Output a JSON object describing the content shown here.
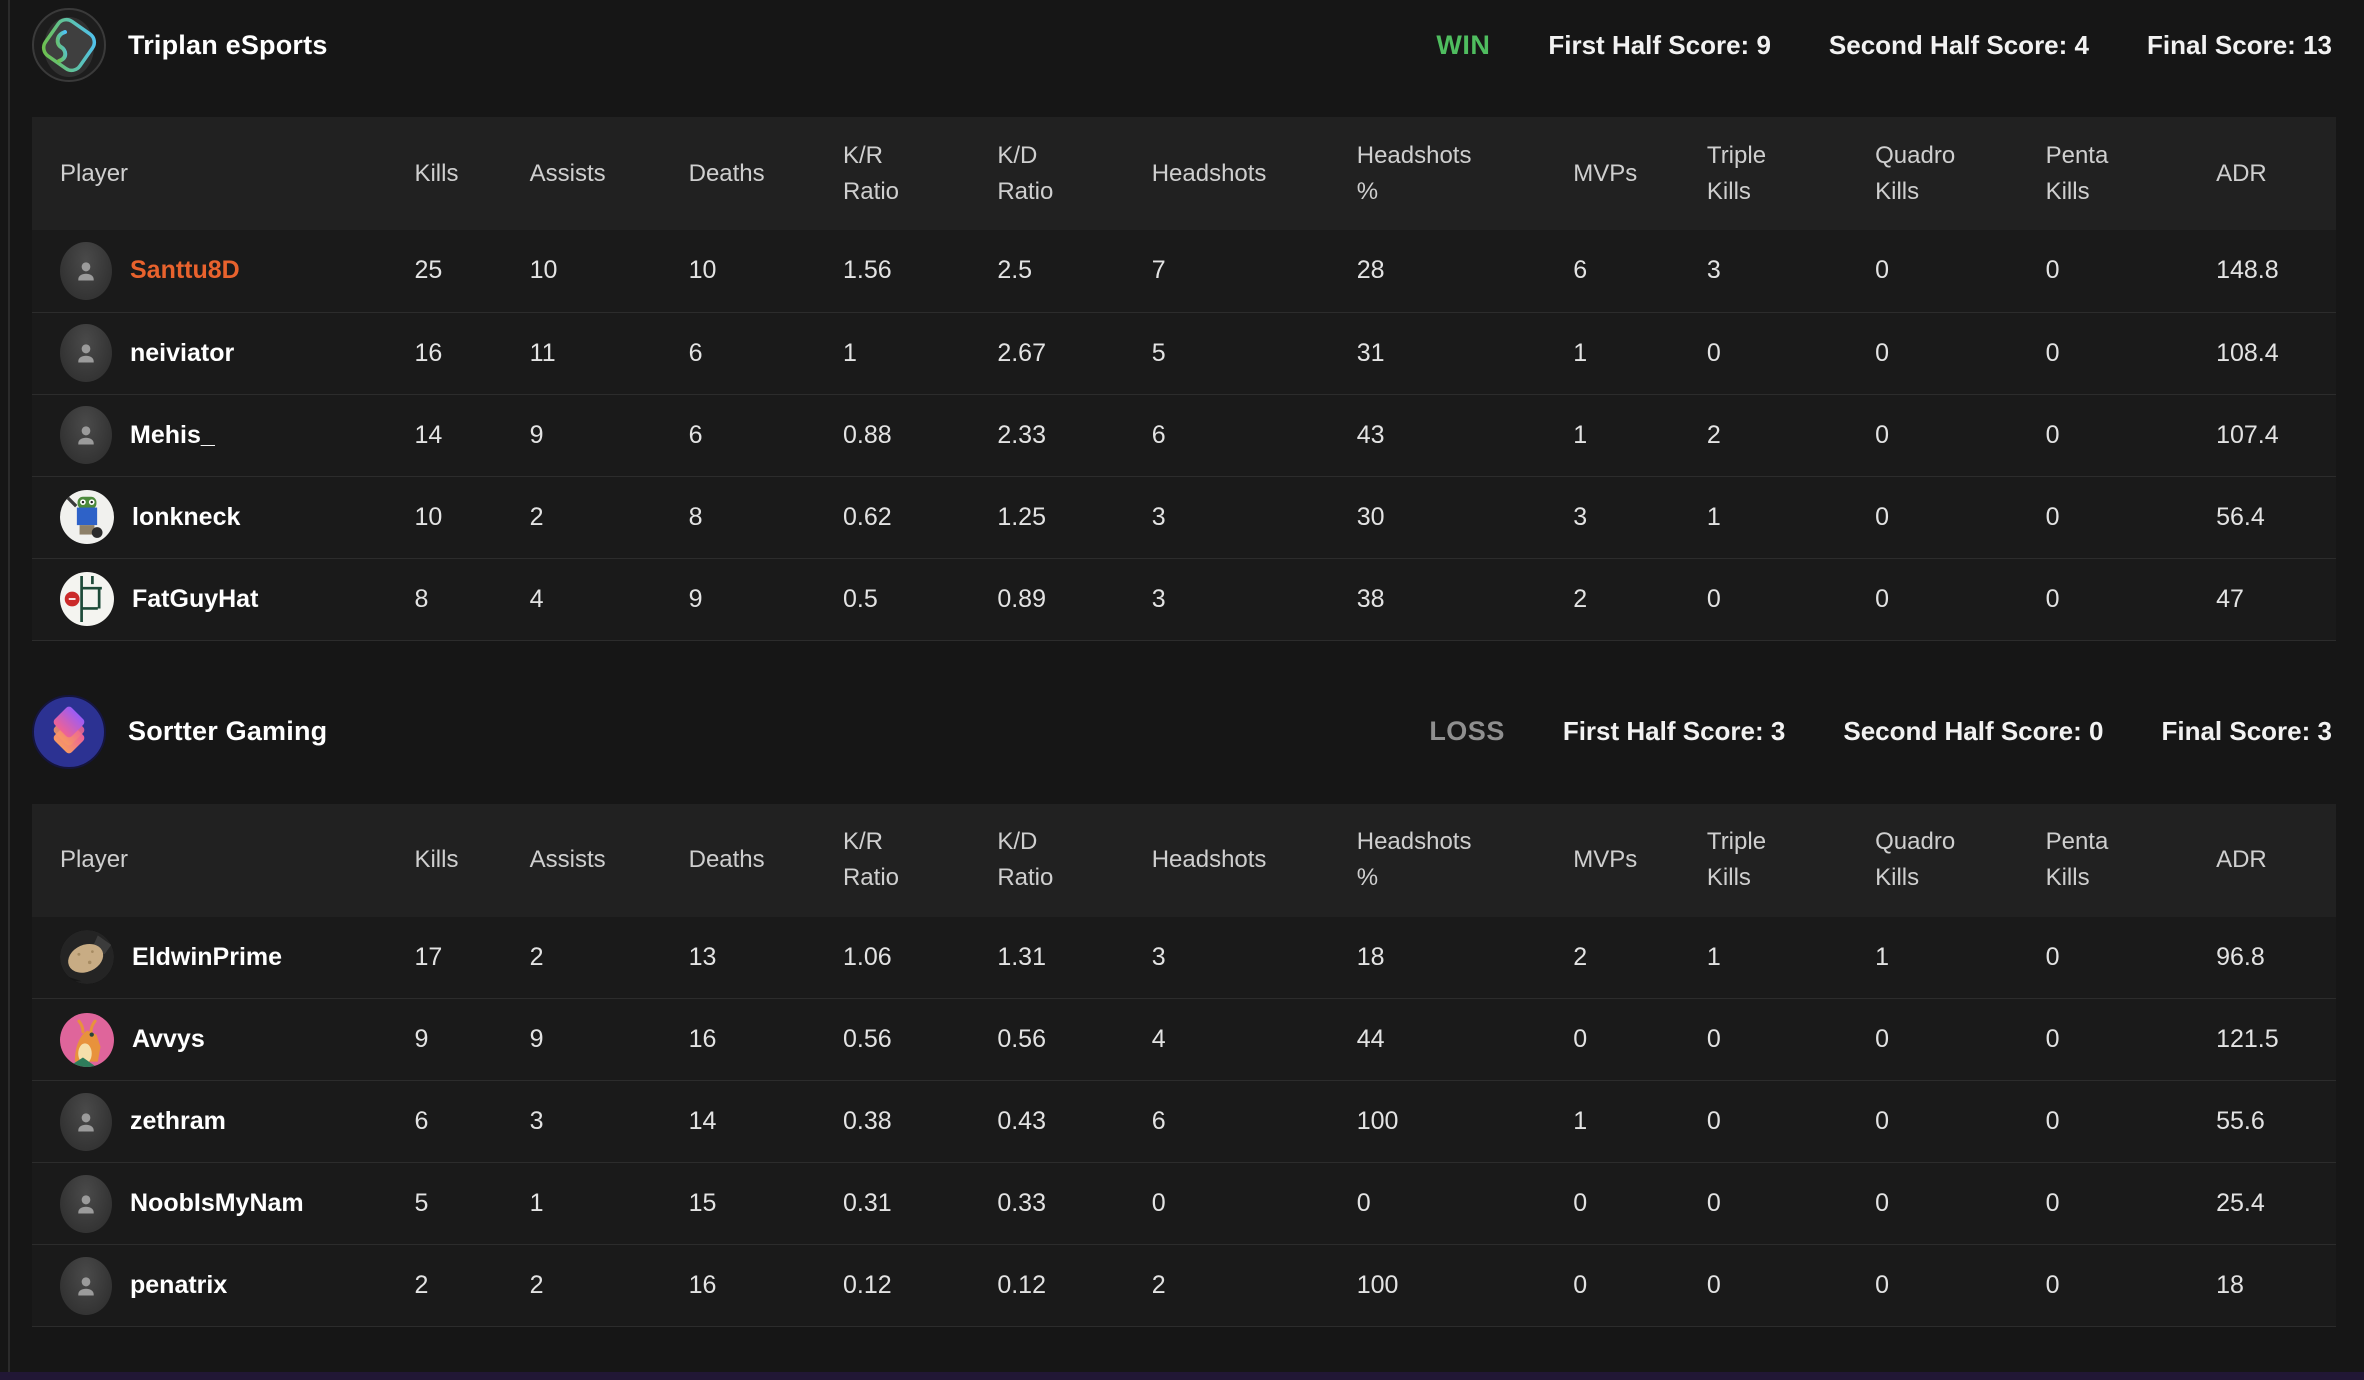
{
  "columns": [
    "Player",
    "Kills",
    "Assists",
    "Deaths",
    "K/R Ratio",
    "K/D Ratio",
    "Headshots",
    "Headshots %",
    "MVPs",
    "Triple Kills",
    "Quadro Kills",
    "Penta Kills",
    "ADR"
  ],
  "colors": {
    "highlight_orange": "#e8622d",
    "win_green": "#4fbd5f",
    "loss_gray": "#8f8f8f",
    "header_bg": "#212121",
    "row_bg": "#1a1a1a"
  },
  "teams": [
    {
      "name": "Triplan eSports",
      "logo_icon": "triplan-esports-logo",
      "result": "WIN",
      "result_color": "#4fbd5f",
      "scores": [
        {
          "label": "First Half Score:",
          "value": "9"
        },
        {
          "label": "Second Half Score:",
          "value": "4"
        },
        {
          "label": "Final Score:",
          "value": "13"
        }
      ],
      "players": [
        {
          "name": "Santtu8D",
          "name_color": "#e8622d",
          "avatar": "default-user-icon",
          "stats": [
            "25",
            "10",
            "10",
            "1.56",
            "2.5",
            "7",
            "28",
            "6",
            "3",
            "0",
            "0",
            "148.8"
          ]
        },
        {
          "name": "neiviator",
          "avatar": "default-user-icon",
          "stats": [
            "16",
            "11",
            "6",
            "1",
            "2.67",
            "5",
            "31",
            "1",
            "0",
            "0",
            "0",
            "108.4"
          ]
        },
        {
          "name": "Mehis_",
          "avatar": "default-user-icon",
          "stats": [
            "14",
            "9",
            "6",
            "0.88",
            "2.33",
            "6",
            "43",
            "1",
            "2",
            "0",
            "0",
            "107.4"
          ]
        },
        {
          "name": "lonkneck",
          "avatar": "custom-frog-gym-avatar",
          "stats": [
            "10",
            "2",
            "8",
            "0.62",
            "1.25",
            "3",
            "30",
            "3",
            "1",
            "0",
            "0",
            "56.4"
          ]
        },
        {
          "name": "FatGuyHat",
          "avatar": "custom-floorplan-avatar",
          "stats": [
            "8",
            "4",
            "9",
            "0.5",
            "0.89",
            "3",
            "38",
            "2",
            "0",
            "0",
            "0",
            "47"
          ]
        }
      ]
    },
    {
      "name": "Sortter Gaming",
      "logo_icon": "sortter-gaming-logo",
      "result": "LOSS",
      "result_color": "#8f8f8f",
      "scores": [
        {
          "label": "First Half Score:",
          "value": "3"
        },
        {
          "label": "Second Half Score:",
          "value": "0"
        },
        {
          "label": "Final Score:",
          "value": "3"
        }
      ],
      "players": [
        {
          "name": "EldwinPrime",
          "avatar": "custom-potato-avatar",
          "stats": [
            "17",
            "2",
            "13",
            "1.06",
            "1.31",
            "3",
            "18",
            "2",
            "1",
            "1",
            "0",
            "96.8"
          ]
        },
        {
          "name": "Avvys",
          "avatar": "custom-dragon-avatar",
          "stats": [
            "9",
            "9",
            "16",
            "0.56",
            "0.56",
            "4",
            "44",
            "0",
            "0",
            "0",
            "0",
            "121.5"
          ]
        },
        {
          "name": "zethram",
          "avatar": "default-user-icon",
          "stats": [
            "6",
            "3",
            "14",
            "0.38",
            "0.43",
            "6",
            "100",
            "1",
            "0",
            "0",
            "0",
            "55.6"
          ]
        },
        {
          "name": "NoobIsMyNam",
          "avatar": "default-user-icon",
          "stats": [
            "5",
            "1",
            "15",
            "0.31",
            "0.33",
            "0",
            "0",
            "0",
            "0",
            "0",
            "0",
            "25.4"
          ]
        },
        {
          "name": "penatrix",
          "avatar": "default-user-icon",
          "stats": [
            "2",
            "2",
            "16",
            "0.12",
            "0.12",
            "2",
            "100",
            "0",
            "0",
            "0",
            "0",
            "18"
          ]
        }
      ]
    }
  ]
}
